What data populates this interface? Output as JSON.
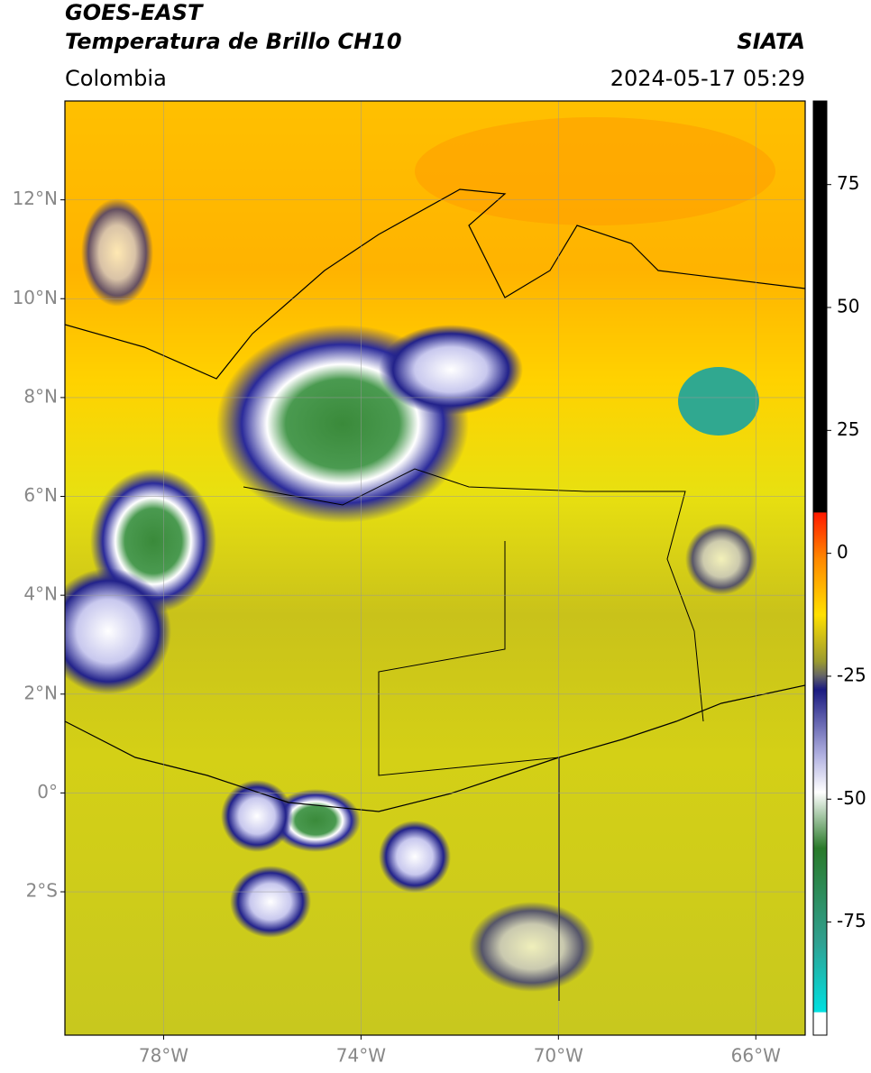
{
  "header": {
    "title": "GOES-EAST",
    "subtitle": "Temperatura de Brillo CH10",
    "source": "SIATA",
    "region": "Colombia",
    "timestamp": "2024-05-17 05:29"
  },
  "map": {
    "lon_range": [
      -80,
      -65
    ],
    "lat_range": [
      -4.9,
      14
    ],
    "lat_ticks": [
      {
        "value": 12,
        "label": "12°N"
      },
      {
        "value": 10,
        "label": "10°N"
      },
      {
        "value": 8,
        "label": "8°N"
      },
      {
        "value": 6,
        "label": "6°N"
      },
      {
        "value": 4,
        "label": "4°N"
      },
      {
        "value": 2,
        "label": "2°N"
      },
      {
        "value": 0,
        "label": "0°"
      },
      {
        "value": -2,
        "label": "2°S"
      }
    ],
    "lon_ticks": [
      {
        "value": -78,
        "label": "78°W"
      },
      {
        "value": -74,
        "label": "74°W"
      },
      {
        "value": -70,
        "label": "70°W"
      },
      {
        "value": -66,
        "label": "66°W"
      }
    ],
    "grid": true
  },
  "colorbar": {
    "range": [
      -98,
      92
    ],
    "ticks": [
      75,
      50,
      25,
      0,
      -25,
      -50,
      -75
    ]
  }
}
